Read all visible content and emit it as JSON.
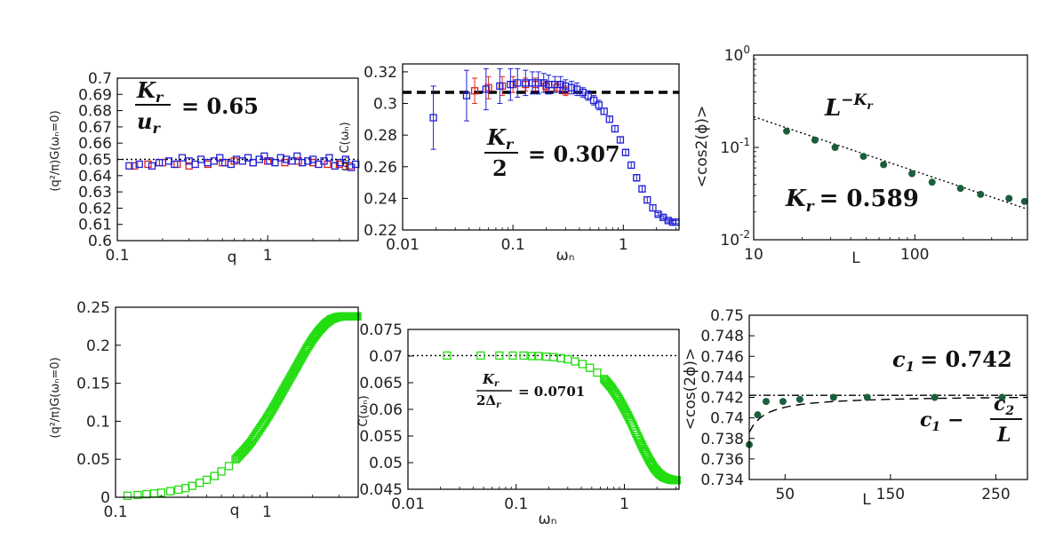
{
  "chart_data": [
    {
      "id": "p1",
      "type": "scatter",
      "xscale": "log",
      "xlim": [
        0.1,
        4.0
      ],
      "ylim": [
        0.6,
        0.7
      ],
      "xlabel": "q",
      "ylabel": "(q²/π)G(ωₙ=0)",
      "xticks": [
        {
          "v": 0.1,
          "t": "0.1"
        },
        {
          "v": 1,
          "t": "1"
        }
      ],
      "yticks": [
        {
          "v": 0.6,
          "t": "0.6"
        },
        {
          "v": 0.61,
          "t": "0.61"
        },
        {
          "v": 0.62,
          "t": "0.62"
        },
        {
          "v": 0.63,
          "t": "0.63"
        },
        {
          "v": 0.64,
          "t": "0.64"
        },
        {
          "v": 0.65,
          "t": "0.65"
        },
        {
          "v": 0.66,
          "t": "0.66"
        },
        {
          "v": 0.67,
          "t": "0.67"
        },
        {
          "v": 0.68,
          "t": "0.68"
        },
        {
          "v": 0.69,
          "t": "0.69"
        },
        {
          "v": 0.7,
          "t": "0.7"
        }
      ],
      "reference_line": {
        "y": 0.65,
        "style": "dotted"
      },
      "annotation": {
        "num": "K",
        "num_sub": "r",
        "den": "u",
        "den_sub": "r",
        "value": "= 0.65"
      },
      "series": [
        {
          "name": "red",
          "color": "#dd2222",
          "x": [
            0.13,
            0.16,
            0.2,
            0.25,
            0.3,
            0.4,
            0.5,
            0.6,
            0.8,
            1.0,
            1.3,
            1.6,
            2.0,
            2.5,
            3.0,
            3.5
          ],
          "y": [
            0.646,
            0.647,
            0.648,
            0.647,
            0.646,
            0.647,
            0.648,
            0.649,
            0.648,
            0.649,
            0.648,
            0.649,
            0.648,
            0.647,
            0.647,
            0.646
          ]
        },
        {
          "name": "blue",
          "color": "#1f1fd6",
          "x": [
            0.12,
            0.14,
            0.17,
            0.19,
            0.22,
            0.24,
            0.27,
            0.3,
            0.33,
            0.36,
            0.4,
            0.44,
            0.48,
            0.52,
            0.57,
            0.62,
            0.68,
            0.74,
            0.8,
            0.88,
            0.95,
            1.03,
            1.12,
            1.22,
            1.33,
            1.45,
            1.57,
            1.7,
            1.85,
            2.0,
            2.18,
            2.37,
            2.57,
            2.8,
            3.05,
            3.3,
            3.6,
            3.85
          ],
          "y": [
            0.646,
            0.647,
            0.646,
            0.648,
            0.649,
            0.647,
            0.651,
            0.649,
            0.647,
            0.65,
            0.648,
            0.649,
            0.651,
            0.648,
            0.647,
            0.65,
            0.649,
            0.651,
            0.648,
            0.65,
            0.652,
            0.649,
            0.648,
            0.651,
            0.65,
            0.649,
            0.652,
            0.648,
            0.649,
            0.65,
            0.647,
            0.649,
            0.651,
            0.646,
            0.648,
            0.65,
            0.645,
            0.647
          ]
        }
      ]
    },
    {
      "id": "p2",
      "type": "scatter",
      "xscale": "log",
      "xlim": [
        0.01,
        3.2
      ],
      "ylim": [
        0.22,
        0.325
      ],
      "xlabel": "ωₙ",
      "ylabel": "ωₙ C(ωₙ)",
      "xticks": [
        {
          "v": 0.01,
          "t": "0.01"
        },
        {
          "v": 0.1,
          "t": "0.1"
        },
        {
          "v": 1,
          "t": "1"
        }
      ],
      "yticks": [
        {
          "v": 0.22,
          "t": "0.22"
        },
        {
          "v": 0.24,
          "t": "0.24"
        },
        {
          "v": 0.26,
          "t": "0.26"
        },
        {
          "v": 0.28,
          "t": "0.28"
        },
        {
          "v": 0.3,
          "t": "0.3"
        },
        {
          "v": 0.32,
          "t": "0.32"
        }
      ],
      "reference_line": {
        "y": 0.307,
        "style": "dashed"
      },
      "annotation": {
        "num": "K",
        "num_sub": "r",
        "den": "2",
        "value": "= 0.307"
      },
      "series": [
        {
          "name": "red",
          "color": "#dd2222",
          "x": [
            0.045,
            0.06,
            0.08,
            0.1,
            0.13,
            0.16,
            0.2,
            0.25,
            0.3
          ],
          "y": [
            0.308,
            0.31,
            0.311,
            0.312,
            0.312,
            0.312,
            0.311,
            0.31,
            0.308
          ],
          "err": [
            0.008,
            0.007,
            0.006,
            0.005,
            0.004,
            0.004,
            0.003,
            0.003,
            0.003
          ]
        },
        {
          "name": "blue",
          "color": "#1f1fd6",
          "x": [
            0.019,
            0.038,
            0.057,
            0.076,
            0.095,
            0.11,
            0.13,
            0.15,
            0.17,
            0.19,
            0.21,
            0.24,
            0.27,
            0.3,
            0.34,
            0.38,
            0.43,
            0.48,
            0.54,
            0.6,
            0.67,
            0.75,
            0.84,
            0.94,
            1.05,
            1.18,
            1.32,
            1.48,
            1.65,
            1.85,
            2.07,
            2.3,
            2.55,
            2.8,
            3.0
          ],
          "y": [
            0.291,
            0.305,
            0.309,
            0.311,
            0.312,
            0.313,
            0.313,
            0.313,
            0.313,
            0.313,
            0.312,
            0.312,
            0.312,
            0.311,
            0.31,
            0.309,
            0.307,
            0.305,
            0.302,
            0.299,
            0.295,
            0.29,
            0.284,
            0.277,
            0.269,
            0.261,
            0.253,
            0.246,
            0.239,
            0.234,
            0.23,
            0.228,
            0.226,
            0.225,
            0.225
          ],
          "err": [
            0.02,
            0.016,
            0.013,
            0.011,
            0.01,
            0.009,
            0.008,
            0.007,
            0.007,
            0.006,
            0.006,
            0.005,
            0.005,
            0.004,
            0.004,
            0.004,
            0.003,
            0.003,
            0.003,
            0.003,
            0.002,
            0.002,
            0.002,
            0.002,
            0.002,
            0.002,
            0.002,
            0.002,
            0.002,
            0.002,
            0.001,
            0.001,
            0.001,
            0.001,
            0.001
          ]
        }
      ]
    },
    {
      "id": "p3",
      "type": "scatter",
      "xscale": "log",
      "yscale": "log",
      "xlim": [
        10,
        500
      ],
      "ylim": [
        0.01,
        1
      ],
      "xlabel": "L",
      "ylabel": "<cos2(ϕ)>",
      "xticks": [
        {
          "v": 10,
          "t": "10"
        },
        {
          "v": 100,
          "t": "100"
        }
      ],
      "yticks": [
        {
          "v": 0.01,
          "t": "10",
          "exp": "-2"
        },
        {
          "v": 0.1,
          "t": "10",
          "exp": "-1"
        },
        {
          "v": 1,
          "t": "10",
          "exp": "0"
        }
      ],
      "fit": {
        "kind": "power",
        "A": 0.834,
        "exponent": -0.589,
        "style": "dotted"
      },
      "annotation": {
        "power_base": "L",
        "power_exp": "−K",
        "power_sub": "r",
        "k_label": "K",
        "k_sub": "r",
        "k_value": "= 0.589"
      },
      "series": [
        {
          "name": "green",
          "color": "#1b5e3b",
          "x": [
            16,
            24,
            32,
            48,
            64,
            96,
            128,
            192,
            256,
            384,
            480
          ],
          "y": [
            0.15,
            0.12,
            0.1,
            0.08,
            0.065,
            0.052,
            0.042,
            0.036,
            0.031,
            0.028,
            0.026
          ]
        }
      ]
    },
    {
      "id": "p4",
      "type": "scatter",
      "xscale": "log",
      "xlim": [
        0.1,
        4.0
      ],
      "ylim": [
        0,
        0.25
      ],
      "xlabel": "q",
      "ylabel": "(q²/π)G(ωₙ=0)",
      "xticks": [
        {
          "v": 0.1,
          "t": "0.1"
        },
        {
          "v": 1,
          "t": "1"
        }
      ],
      "yticks": [
        {
          "v": 0,
          "t": "0"
        },
        {
          "v": 0.05,
          "t": "0.05"
        },
        {
          "v": 0.1,
          "t": "0.1"
        },
        {
          "v": 0.15,
          "t": "0.15"
        },
        {
          "v": 0.2,
          "t": "0.2"
        },
        {
          "v": 0.25,
          "t": "0.25"
        }
      ],
      "series": [
        {
          "name": "green",
          "color": "#22dd10",
          "x": [
            0.12,
            0.14,
            0.16,
            0.18,
            0.2,
            0.23,
            0.26,
            0.29,
            0.32,
            0.36,
            0.4,
            0.45,
            0.5,
            0.56,
            0.62,
            0.7,
            0.78,
            0.87,
            0.97,
            1.08,
            1.2,
            1.33,
            1.48,
            1.64,
            1.82,
            2.0,
            2.2,
            2.42,
            2.65,
            2.9,
            3.15,
            3.4,
            3.65,
            3.85,
            3.95
          ],
          "y": [
            0.002,
            0.003,
            0.004,
            0.005,
            0.006,
            0.008,
            0.01,
            0.012,
            0.015,
            0.019,
            0.023,
            0.028,
            0.034,
            0.041,
            0.05,
            0.061,
            0.072,
            0.086,
            0.1,
            0.115,
            0.131,
            0.147,
            0.163,
            0.179,
            0.195,
            0.208,
            0.219,
            0.228,
            0.234,
            0.237,
            0.238,
            0.238,
            0.238,
            0.238,
            0.238
          ]
        }
      ]
    },
    {
      "id": "p5",
      "type": "scatter",
      "xscale": "log",
      "xlim": [
        0.01,
        3.2
      ],
      "ylim": [
        0.045,
        0.075
      ],
      "xlabel": "ωₙ",
      "ylabel": "C(ωₙ)",
      "xticks": [
        {
          "v": 0.01,
          "t": "0.01"
        },
        {
          "v": 0.1,
          "t": "0.1"
        },
        {
          "v": 1,
          "t": "1"
        }
      ],
      "yticks": [
        {
          "v": 0.045,
          "t": "0.045"
        },
        {
          "v": 0.05,
          "t": "0.05"
        },
        {
          "v": 0.055,
          "t": "0.055"
        },
        {
          "v": 0.06,
          "t": "0.06"
        },
        {
          "v": 0.065,
          "t": "0.065"
        },
        {
          "v": 0.07,
          "t": "0.07"
        },
        {
          "v": 0.075,
          "t": "0.075"
        }
      ],
      "reference_line": {
        "y": 0.0701,
        "style": "dotted"
      },
      "annotation": {
        "num": "K",
        "num_sub": "r",
        "den": "2Δ",
        "den_sub": "r",
        "value": "= 0.0701"
      },
      "series": [
        {
          "name": "green",
          "color": "#22dd10",
          "x": [
            0.023,
            0.047,
            0.07,
            0.093,
            0.117,
            0.14,
            0.16,
            0.19,
            0.22,
            0.26,
            0.3,
            0.35,
            0.41,
            0.48,
            0.56,
            0.65,
            0.75,
            0.87,
            1.0,
            1.15,
            1.32,
            1.5,
            1.7,
            1.9,
            2.1,
            2.3,
            2.5,
            2.7,
            2.9,
            3.05
          ],
          "y": [
            0.0701,
            0.0701,
            0.0701,
            0.0701,
            0.0701,
            0.07,
            0.07,
            0.0699,
            0.0698,
            0.0696,
            0.0694,
            0.069,
            0.0685,
            0.0678,
            0.0669,
            0.0657,
            0.0642,
            0.0623,
            0.0601,
            0.0577,
            0.055,
            0.0526,
            0.0505,
            0.0489,
            0.0479,
            0.0473,
            0.047,
            0.0468,
            0.0467,
            0.0467
          ]
        }
      ]
    },
    {
      "id": "p6",
      "type": "scatter",
      "xlim": [
        16,
        280
      ],
      "ylim": [
        0.734,
        0.75
      ],
      "xlabel": "L",
      "ylabel": "<cos(2ϕ)>",
      "xticks": [
        {
          "v": 50,
          "t": "50"
        },
        {
          "v": 150,
          "t": "150"
        },
        {
          "v": 250,
          "t": "250"
        }
      ],
      "yticks": [
        {
          "v": 0.734,
          "t": "0.734"
        },
        {
          "v": 0.736,
          "t": "0.736"
        },
        {
          "v": 0.738,
          "t": "0.738"
        },
        {
          "v": 0.74,
          "t": "0.74"
        },
        {
          "v": 0.742,
          "t": "0.742"
        },
        {
          "v": 0.744,
          "t": "0.744"
        },
        {
          "v": 0.746,
          "t": "0.746"
        },
        {
          "v": 0.748,
          "t": "0.748"
        },
        {
          "v": 0.75,
          "t": "0.75"
        }
      ],
      "reference_line": {
        "y": 0.7422,
        "style": "dashdot"
      },
      "fit": {
        "kind": "c1_minus_c2_over_L",
        "c1": 0.7422,
        "c2": 0.058,
        "style": "dashed"
      },
      "annotation": {
        "c1_label": "c",
        "c1_sub": "1",
        "c1_value": "= 0.742",
        "fit_lhs": "c",
        "fit_lhs_sub": "1",
        "fit_num": "c",
        "fit_num_sub": "2",
        "fit_den": "L"
      },
      "series": [
        {
          "name": "green",
          "color": "#1b5e3b",
          "x": [
            16,
            24,
            32,
            48,
            64,
            96,
            128,
            192,
            256
          ],
          "y": [
            0.7374,
            0.7403,
            0.7416,
            0.7416,
            0.7418,
            0.742,
            0.742,
            0.742,
            0.742
          ]
        }
      ]
    }
  ]
}
